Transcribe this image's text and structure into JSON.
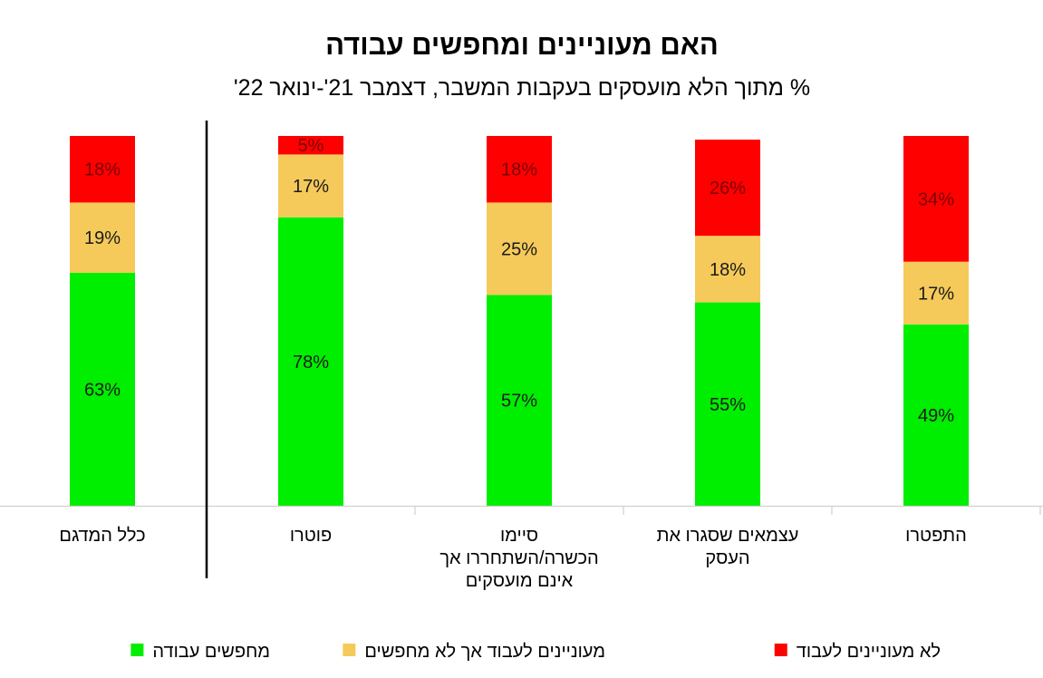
{
  "chart_data": {
    "type": "bar",
    "stacked": true,
    "title": "האם מעוניינים ומחפשים עבודה",
    "subtitle": "% מתוך הלא מועסקים בעקבות המשבר, דצמבר 21'-ינואר 22'",
    "categories": [
      [
        "כלל המדגם"
      ],
      [
        "פוטרו"
      ],
      [
        "סיימו",
        "הכשרה/השתחררו אך",
        "אינם מועסקים"
      ],
      [
        "עצמאים שסגרו את",
        "העסק"
      ],
      [
        "התפטרו"
      ]
    ],
    "series": [
      {
        "name": "מחפשים עבודה",
        "color": "#00ee00",
        "values": [
          63,
          78,
          57,
          55,
          49
        ],
        "labels": [
          "63%",
          "78%",
          "57%",
          "55%",
          "49%"
        ]
      },
      {
        "name": "מעוניינים לעבוד אך לא מחפשים",
        "color": "#f5ca5a",
        "values": [
          19,
          17,
          25,
          18,
          17
        ],
        "labels": [
          "19%",
          "17%",
          "25%",
          "18%",
          "17%"
        ]
      },
      {
        "name": "לא מעוניינים לעבוד",
        "color": "#ff0000",
        "values": [
          18,
          5,
          18,
          26,
          34
        ],
        "labels": [
          "18%",
          "5%",
          "18%",
          "26%",
          "34%"
        ]
      }
    ],
    "legend_order": [
      2,
      1,
      0
    ],
    "legend_position": "bottom",
    "ylim": [
      0,
      100
    ],
    "grid": false,
    "separator_after_category": 0,
    "label_colors": {
      "on_green": "#1a1a1a",
      "on_yellow": "#1a1a1a",
      "on_red": "#7a0000"
    }
  }
}
